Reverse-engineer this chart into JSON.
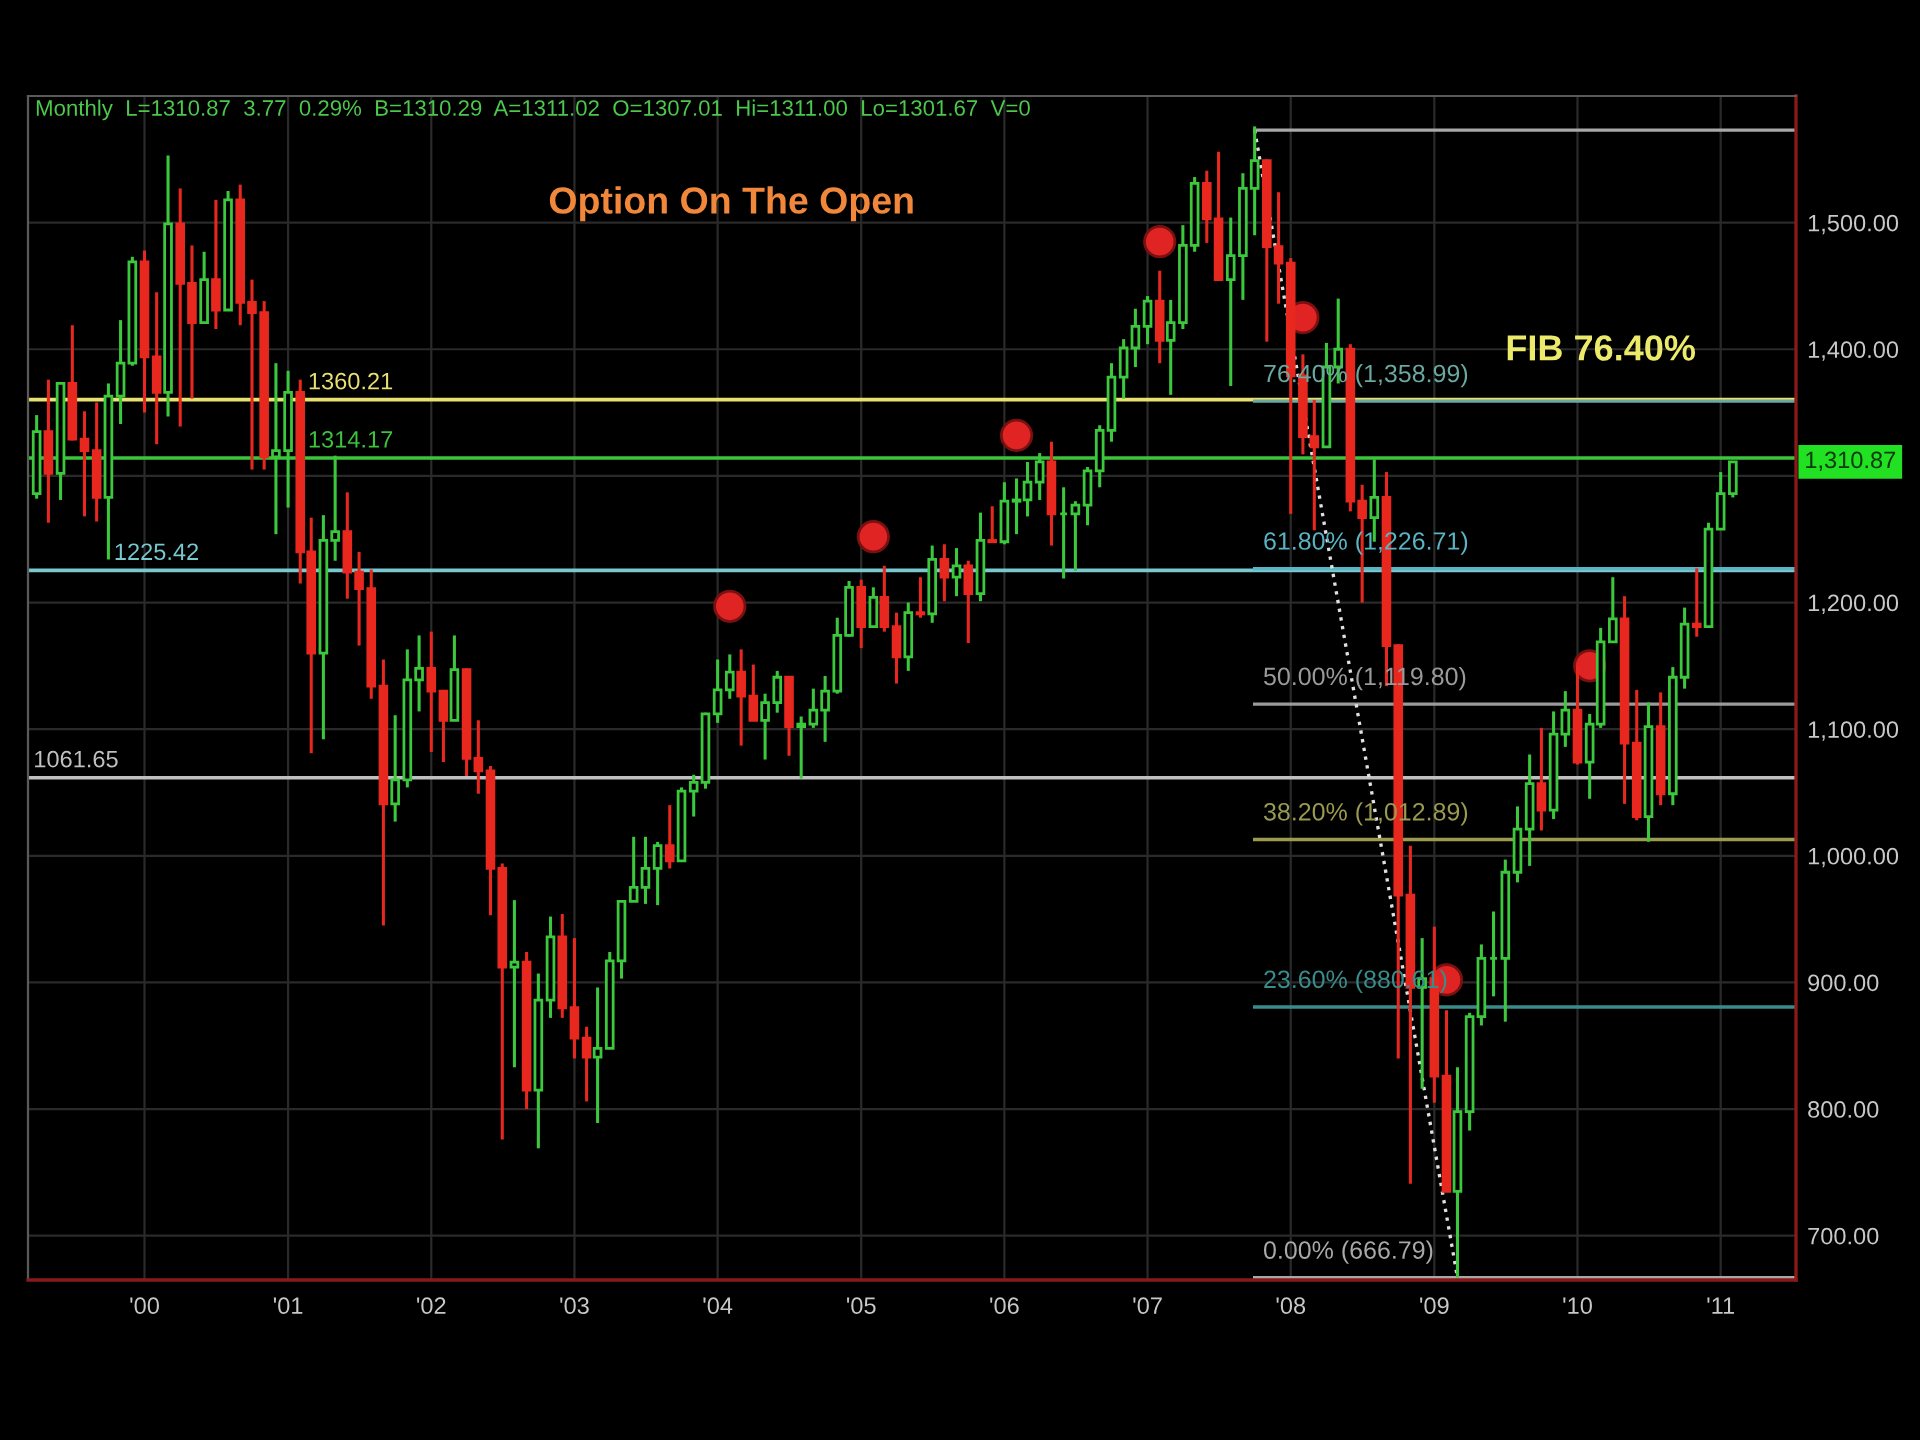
{
  "chart_data": {
    "type": "candlestick",
    "title": "Option On The Open",
    "x": [
      "1999-04",
      "1999-05",
      "1999-06",
      "1999-07",
      "1999-08",
      "1999-09",
      "1999-10",
      "1999-11",
      "1999-12",
      "2000-01",
      "2000-02",
      "2000-03",
      "2000-04",
      "2000-05",
      "2000-06",
      "2000-07",
      "2000-08",
      "2000-09",
      "2000-10",
      "2000-11",
      "2000-12",
      "2001-01",
      "2001-02",
      "2001-03",
      "2001-04",
      "2001-05",
      "2001-06",
      "2001-07",
      "2001-08",
      "2001-09",
      "2001-10",
      "2001-11",
      "2001-12",
      "2002-01",
      "2002-02",
      "2002-03",
      "2002-04",
      "2002-05",
      "2002-06",
      "2002-07",
      "2002-08",
      "2002-09",
      "2002-10",
      "2002-11",
      "2002-12",
      "2003-01",
      "2003-02",
      "2003-03",
      "2003-04",
      "2003-05",
      "2003-06",
      "2003-07",
      "2003-08",
      "2003-09",
      "2003-10",
      "2003-11",
      "2003-12",
      "2004-01",
      "2004-02",
      "2004-03",
      "2004-04",
      "2004-05",
      "2004-06",
      "2004-07",
      "2004-08",
      "2004-09",
      "2004-10",
      "2004-11",
      "2004-12",
      "2005-01",
      "2005-02",
      "2005-03",
      "2005-04",
      "2005-05",
      "2005-06",
      "2005-07",
      "2005-08",
      "2005-09",
      "2005-10",
      "2005-11",
      "2005-12",
      "2006-01",
      "2006-02",
      "2006-03",
      "2006-04",
      "2006-05",
      "2006-06",
      "2006-07",
      "2006-08",
      "2006-09",
      "2006-10",
      "2006-11",
      "2006-12",
      "2007-01",
      "2007-02",
      "2007-03",
      "2007-04",
      "2007-05",
      "2007-06",
      "2007-07",
      "2007-08",
      "2007-09",
      "2007-10",
      "2007-11",
      "2007-12",
      "2008-01",
      "2008-02",
      "2008-03",
      "2008-04",
      "2008-05",
      "2008-06",
      "2008-07",
      "2008-08",
      "2008-09",
      "2008-10",
      "2008-11",
      "2008-12",
      "2009-01",
      "2009-02",
      "2009-03",
      "2009-04",
      "2009-05",
      "2009-06",
      "2009-07",
      "2009-08",
      "2009-09",
      "2009-10",
      "2009-11",
      "2009-12",
      "2010-01",
      "2010-02",
      "2010-03",
      "2010-04",
      "2010-05",
      "2010-06",
      "2010-07",
      "2010-08",
      "2010-09",
      "2010-10",
      "2010-11",
      "2010-12",
      "2011-01",
      "2011-02"
    ],
    "ohlc": [
      [
        1286,
        1348,
        1282,
        1335
      ],
      [
        1335,
        1376,
        1263,
        1302
      ],
      [
        1302,
        1373,
        1281,
        1373
      ],
      [
        1373,
        1419,
        1328,
        1329
      ],
      [
        1329,
        1351,
        1268,
        1320
      ],
      [
        1320,
        1358,
        1264,
        1283
      ],
      [
        1283,
        1373,
        1234,
        1363
      ],
      [
        1363,
        1423,
        1341,
        1389
      ],
      [
        1389,
        1473,
        1387,
        1469
      ],
      [
        1469,
        1478,
        1350,
        1394
      ],
      [
        1394,
        1445,
        1325,
        1366
      ],
      [
        1366,
        1553,
        1347,
        1499
      ],
      [
        1499,
        1527,
        1339,
        1452
      ],
      [
        1452,
        1482,
        1361,
        1421
      ],
      [
        1421,
        1477,
        1421,
        1455
      ],
      [
        1455,
        1518,
        1416,
        1431
      ],
      [
        1431,
        1525,
        1431,
        1518
      ],
      [
        1518,
        1530,
        1419,
        1437
      ],
      [
        1437,
        1455,
        1305,
        1429
      ],
      [
        1429,
        1438,
        1305,
        1315
      ],
      [
        1315,
        1389,
        1254,
        1320
      ],
      [
        1320,
        1383,
        1275,
        1366
      ],
      [
        1366,
        1376,
        1215,
        1240
      ],
      [
        1240,
        1267,
        1081,
        1160
      ],
      [
        1160,
        1269,
        1092,
        1249
      ],
      [
        1249,
        1316,
        1233,
        1256
      ],
      [
        1256,
        1287,
        1203,
        1224
      ],
      [
        1224,
        1240,
        1166,
        1211
      ],
      [
        1211,
        1226,
        1124,
        1134
      ],
      [
        1134,
        1155,
        945,
        1041
      ],
      [
        1041,
        1111,
        1027,
        1060
      ],
      [
        1060,
        1163,
        1054,
        1139
      ],
      [
        1139,
        1174,
        1114,
        1148
      ],
      [
        1148,
        1177,
        1082,
        1130
      ],
      [
        1130,
        1131,
        1074,
        1107
      ],
      [
        1107,
        1174,
        1107,
        1147
      ],
      [
        1147,
        1148,
        1063,
        1077
      ],
      [
        1077,
        1107,
        1049,
        1067
      ],
      [
        1067,
        1071,
        953,
        990
      ],
      [
        990,
        994,
        776,
        912
      ],
      [
        912,
        965,
        833,
        916
      ],
      [
        916,
        924,
        800,
        815
      ],
      [
        815,
        907,
        769,
        886
      ],
      [
        886,
        952,
        872,
        936
      ],
      [
        936,
        954,
        872,
        880
      ],
      [
        880,
        935,
        840,
        856
      ],
      [
        856,
        865,
        806,
        841
      ],
      [
        841,
        896,
        789,
        848
      ],
      [
        848,
        924,
        848,
        917
      ],
      [
        917,
        965,
        903,
        964
      ],
      [
        964,
        1015,
        964,
        975
      ],
      [
        975,
        1015,
        962,
        990
      ],
      [
        990,
        1011,
        961,
        1008
      ],
      [
        1008,
        1040,
        990,
        996
      ],
      [
        996,
        1054,
        996,
        1051
      ],
      [
        1051,
        1064,
        1031,
        1058
      ],
      [
        1058,
        1113,
        1053,
        1112
      ],
      [
        1112,
        1155,
        1105,
        1131
      ],
      [
        1131,
        1159,
        1124,
        1145
      ],
      [
        1145,
        1163,
        1087,
        1126
      ],
      [
        1126,
        1151,
        1107,
        1107
      ],
      [
        1107,
        1128,
        1076,
        1121
      ],
      [
        1121,
        1146,
        1113,
        1141
      ],
      [
        1141,
        1141,
        1079,
        1102
      ],
      [
        1102,
        1110,
        1061,
        1104
      ],
      [
        1104,
        1132,
        1101,
        1115
      ],
      [
        1115,
        1142,
        1090,
        1130
      ],
      [
        1130,
        1188,
        1128,
        1174
      ],
      [
        1174,
        1217,
        1173,
        1212
      ],
      [
        1212,
        1218,
        1164,
        1181
      ],
      [
        1181,
        1212,
        1181,
        1204
      ],
      [
        1204,
        1229,
        1177,
        1181
      ],
      [
        1181,
        1192,
        1136,
        1157
      ],
      [
        1157,
        1200,
        1146,
        1192
      ],
      [
        1192,
        1220,
        1188,
        1191
      ],
      [
        1191,
        1245,
        1184,
        1234
      ],
      [
        1234,
        1246,
        1201,
        1220
      ],
      [
        1220,
        1243,
        1205,
        1229
      ],
      [
        1229,
        1233,
        1168,
        1207
      ],
      [
        1207,
        1271,
        1201,
        1249
      ],
      [
        1249,
        1276,
        1247,
        1248
      ],
      [
        1248,
        1295,
        1246,
        1280
      ],
      [
        1280,
        1298,
        1254,
        1281
      ],
      [
        1281,
        1311,
        1268,
        1295
      ],
      [
        1295,
        1318,
        1281,
        1311
      ],
      [
        1311,
        1327,
        1245,
        1270
      ],
      [
        1270,
        1291,
        1219,
        1270
      ],
      [
        1270,
        1280,
        1225,
        1277
      ],
      [
        1277,
        1307,
        1261,
        1304
      ],
      [
        1304,
        1340,
        1291,
        1336
      ],
      [
        1336,
        1389,
        1327,
        1378
      ],
      [
        1378,
        1408,
        1361,
        1401
      ],
      [
        1401,
        1432,
        1386,
        1418
      ],
      [
        1418,
        1442,
        1404,
        1438
      ],
      [
        1438,
        1462,
        1389,
        1407
      ],
      [
        1407,
        1439,
        1364,
        1421
      ],
      [
        1421,
        1498,
        1416,
        1482
      ],
      [
        1482,
        1536,
        1477,
        1531
      ],
      [
        1531,
        1541,
        1484,
        1503
      ],
      [
        1503,
        1556,
        1454,
        1455
      ],
      [
        1455,
        1504,
        1371,
        1474
      ],
      [
        1474,
        1539,
        1439,
        1527
      ],
      [
        1527,
        1576,
        1490,
        1549
      ],
      [
        1549,
        1550,
        1406,
        1481
      ],
      [
        1481,
        1524,
        1436,
        1468
      ],
      [
        1468,
        1472,
        1270,
        1379
      ],
      [
        1379,
        1396,
        1317,
        1331
      ],
      [
        1331,
        1360,
        1257,
        1323
      ],
      [
        1323,
        1405,
        1323,
        1386
      ],
      [
        1386,
        1440,
        1373,
        1400
      ],
      [
        1400,
        1404,
        1272,
        1280
      ],
      [
        1280,
        1293,
        1200,
        1267
      ],
      [
        1267,
        1313,
        1248,
        1283
      ],
      [
        1283,
        1303,
        1134,
        1166
      ],
      [
        1166,
        1167,
        840,
        969
      ],
      [
        969,
        1008,
        741,
        896
      ],
      [
        896,
        935,
        816,
        903
      ],
      [
        903,
        944,
        805,
        826
      ],
      [
        826,
        878,
        735,
        735
      ],
      [
        735,
        833,
        667,
        798
      ],
      [
        798,
        876,
        783,
        873
      ],
      [
        873,
        930,
        866,
        919
      ],
      [
        919,
        956,
        889,
        919
      ],
      [
        919,
        997,
        869,
        987
      ],
      [
        987,
        1039,
        979,
        1021
      ],
      [
        1021,
        1080,
        992,
        1057
      ],
      [
        1057,
        1101,
        1020,
        1036
      ],
      [
        1036,
        1114,
        1029,
        1096
      ],
      [
        1096,
        1130,
        1086,
        1115
      ],
      [
        1115,
        1150,
        1072,
        1074
      ],
      [
        1074,
        1112,
        1045,
        1104
      ],
      [
        1104,
        1180,
        1101,
        1169
      ],
      [
        1169,
        1220,
        1169,
        1187
      ],
      [
        1187,
        1205,
        1041,
        1089
      ],
      [
        1089,
        1131,
        1028,
        1031
      ],
      [
        1031,
        1121,
        1011,
        1102
      ],
      [
        1102,
        1129,
        1040,
        1049
      ],
      [
        1049,
        1149,
        1040,
        1141
      ],
      [
        1141,
        1196,
        1132,
        1183
      ],
      [
        1183,
        1227,
        1173,
        1181
      ],
      [
        1181,
        1263,
        1181,
        1258
      ],
      [
        1258,
        1303,
        1258,
        1286
      ],
      [
        1286,
        1311,
        1283,
        1311
      ]
    ],
    "colors": [
      "#3cc83c",
      "#e8281e",
      "#3cc83c",
      "#e8281e",
      "#e8281e",
      "#e8281e",
      "#3cc83c",
      "#3cc83c",
      "#3cc83c",
      "#e8281e",
      "#e8281e",
      "#3cc83c",
      "#e8281e",
      "#e8281e",
      "#3cc83c",
      "#e8281e",
      "#3cc83c",
      "#e8281e",
      "#e8281e",
      "#e8281e",
      "#3cc83c",
      "#3cc83c",
      "#e8281e",
      "#e8281e",
      "#3cc83c",
      "#3cc83c",
      "#e8281e",
      "#e8281e",
      "#e8281e",
      "#e8281e",
      "#3cc83c",
      "#3cc83c",
      "#3cc83c",
      "#e8281e",
      "#e8281e",
      "#3cc83c",
      "#e8281e",
      "#e8281e",
      "#e8281e",
      "#e8281e",
      "#3cc83c",
      "#e8281e",
      "#3cc83c",
      "#3cc83c",
      "#e8281e",
      "#e8281e",
      "#e8281e",
      "#3cc83c",
      "#3cc83c",
      "#3cc83c",
      "#3cc83c",
      "#3cc83c",
      "#3cc83c",
      "#e8281e",
      "#3cc83c",
      "#3cc83c",
      "#3cc83c",
      "#3cc83c",
      "#3cc83c",
      "#e8281e",
      "#e8281e",
      "#3cc83c",
      "#3cc83c",
      "#e8281e",
      "#3cc83c",
      "#3cc83c",
      "#3cc83c",
      "#3cc83c",
      "#3cc83c",
      "#e8281e",
      "#3cc83c",
      "#e8281e",
      "#e8281e",
      "#3cc83c",
      "#e8281e",
      "#3cc83c",
      "#e8281e",
      "#3cc83c",
      "#e8281e",
      "#3cc83c",
      "#e8281e",
      "#3cc83c",
      "#3cc83c",
      "#3cc83c",
      "#3cc83c",
      "#e8281e",
      "#3cc83c",
      "#3cc83c",
      "#3cc83c",
      "#3cc83c",
      "#3cc83c",
      "#3cc83c",
      "#3cc83c",
      "#3cc83c",
      "#e8281e",
      "#3cc83c",
      "#3cc83c",
      "#3cc83c",
      "#e8281e",
      "#e8281e",
      "#3cc83c",
      "#3cc83c",
      "#3cc83c",
      "#e8281e",
      "#e8281e",
      "#e8281e",
      "#e8281e",
      "#e8281e",
      "#3cc83c",
      "#3cc83c",
      "#e8281e",
      "#e8281e",
      "#3cc83c",
      "#e8281e",
      "#e8281e",
      "#e8281e",
      "#3cc83c",
      "#e8281e",
      "#e8281e",
      "#3cc83c",
      "#3cc83c",
      "#3cc83c",
      "#3cc83c",
      "#3cc83c",
      "#3cc83c",
      "#3cc83c",
      "#e8281e",
      "#3cc83c",
      "#3cc83c",
      "#e8281e",
      "#3cc83c",
      "#3cc83c",
      "#3cc83c",
      "#e8281e",
      "#e8281e",
      "#3cc83c",
      "#e8281e",
      "#3cc83c",
      "#3cc83c",
      "#e8281e",
      "#3cc83c",
      "#3cc83c",
      "#3cc83c"
    ],
    "series": [
      {
        "type": "line",
        "x": [
          "2007-10",
          "2011-07-12"
        ],
        "values": [
          1573,
          1573
        ],
        "color": "#a8a8a8"
      },
      {
        "type": "line",
        "name": "76.40% (1,358.99)",
        "x": [
          "2007-10",
          "2011-07-12"
        ],
        "values": [
          1358.99,
          1358.99
        ],
        "color": "#6aa8a0"
      },
      {
        "type": "line",
        "name": "61.80% (1,226.71)",
        "x": [
          "2007-10",
          "2011-07-12"
        ],
        "values": [
          1226.71,
          1226.71
        ],
        "color": "#5ab4c4"
      },
      {
        "type": "line",
        "name": "50.00% (1,119.80)",
        "x": [
          "2007-10",
          "2011-07-12"
        ],
        "values": [
          1119.8,
          1119.8
        ],
        "color": "#9a9a9a"
      },
      {
        "type": "line",
        "name": "38.20% (1,012.89)",
        "x": [
          "2007-10",
          "2011-07-12"
        ],
        "values": [
          1012.89,
          1012.89
        ],
        "color": "#9a9a50"
      },
      {
        "type": "line",
        "name": "23.60% (880.61)",
        "x": [
          "2007-10",
          "2011-07-12"
        ],
        "values": [
          880.61,
          880.61
        ],
        "color": "#3a8c8c"
      },
      {
        "type": "line",
        "name": "0.00% (666.79)",
        "x": [
          "2007-10",
          "2011-07-12"
        ],
        "values": [
          666.79,
          666.79
        ],
        "color": "#a8a8a8"
      },
      {
        "type": "line",
        "x": [
          "2007-10",
          "2009-03"
        ],
        "values": [
          1573,
          667
        ],
        "color": "#e0e0e0",
        "line_style": "dotted"
      },
      {
        "type": "scatter",
        "x": [
          "2004-02",
          "2005-02",
          "2006-02",
          "2007-02",
          "2008-02",
          "2009-02",
          "2010-02"
        ],
        "values": [
          1197,
          1252,
          1332,
          1485,
          1425,
          902,
          1150
        ],
        "color": "#e02424",
        "marker": "circle"
      }
    ],
    "ref_lines": [
      {
        "axis": "y",
        "value": 1360.21,
        "label": "1360.21",
        "color": "#e8e070"
      },
      {
        "axis": "y",
        "value": 1314.17,
        "label": "1314.17",
        "color": "#3cc43c"
      },
      {
        "axis": "y",
        "value": 1225.42,
        "label": "1225.42",
        "color": "#78c8d0"
      },
      {
        "axis": "y",
        "value": 1061.65,
        "label": "1061.65",
        "color": "#c0c0c0"
      }
    ],
    "annotations": [
      "Monthly  L=1310.87  3.77  0.29%  B=1310.29  A=1311.02  O=1307.01  Hi=1311.00  Lo=1301.67  V=0",
      {
        "text": "FIB 76.40%",
        "x": "2010-03",
        "y": 1358.99
      },
      "1,310.87"
    ],
    "xlim": [
      "1999-03-10",
      "2011-07-12"
    ],
    "xticks": [
      {
        "value": "2000-01",
        "label": "'00"
      },
      {
        "value": "2001-01",
        "label": "'01"
      },
      {
        "value": "2002-01",
        "label": "'02"
      },
      {
        "value": "2003-01",
        "label": "'03"
      },
      {
        "value": "2004-01",
        "label": "'04"
      },
      {
        "value": "2005-01",
        "label": "'05"
      },
      {
        "value": "2006-01",
        "label": "'06"
      },
      {
        "value": "2007-01",
        "label": "'07"
      },
      {
        "value": "2008-01",
        "label": "'08"
      },
      {
        "value": "2009-01",
        "label": "'09"
      },
      {
        "value": "2010-01",
        "label": "'10"
      },
      {
        "value": "2011-01",
        "label": "'11"
      }
    ],
    "ylim": [
      665,
      1600
    ],
    "yticks": [
      {
        "value": 700,
        "label": "700.00"
      },
      {
        "value": 800,
        "label": "800.00"
      },
      {
        "value": 900,
        "label": "900.00"
      },
      {
        "value": 1000,
        "label": "1,000.00"
      },
      {
        "value": 1100,
        "label": "1,100.00"
      },
      {
        "value": 1200,
        "label": "1,200.00"
      },
      {
        "value": 1300,
        "label": null
      },
      {
        "value": 1400,
        "label": "1,400.00"
      },
      {
        "value": 1500,
        "label": "1,500.00"
      }
    ],
    "grid": true
  }
}
